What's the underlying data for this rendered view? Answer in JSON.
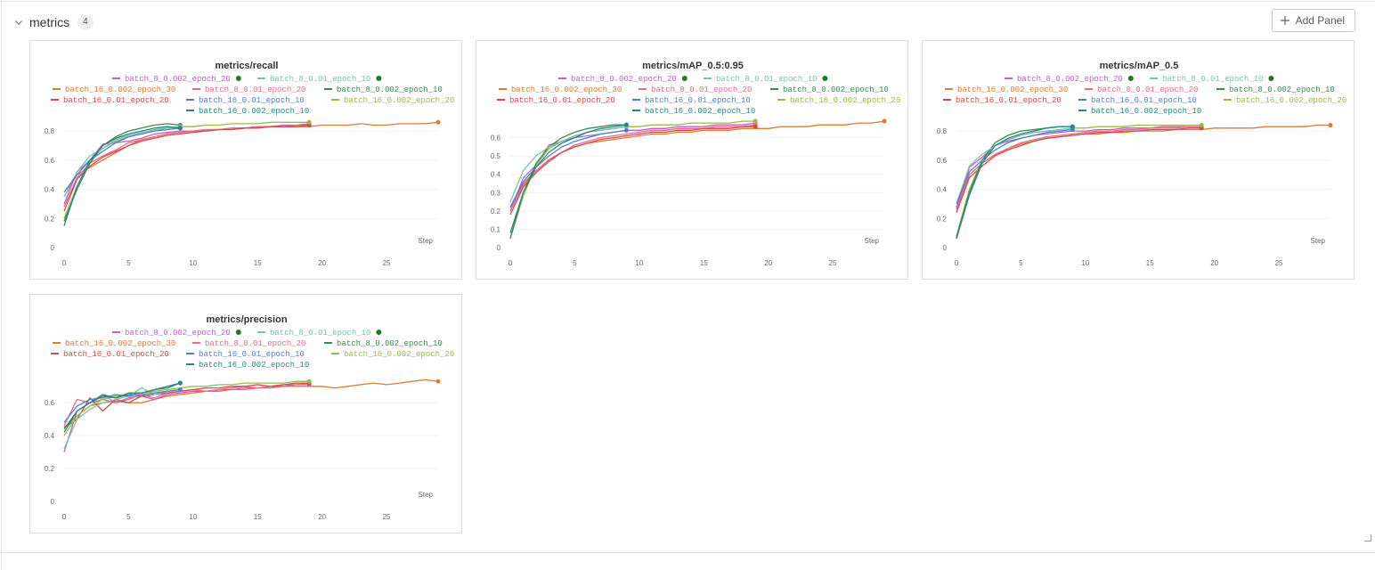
{
  "section": {
    "title": "metrics",
    "count": "4",
    "add_panel_label": "Add Panel"
  },
  "colors": {
    "b8_002_e20": "#c45fc5",
    "b8_01_e10": "#74c4b0",
    "b16_002_e30": "#e07a35",
    "b8_01_e20": "#e86b8c",
    "b8_002_e10": "#3a8a4e",
    "b16_01_e20": "#d94848",
    "b16_01_e10": "#4b7fd6",
    "b16_002_e20": "#96bc46",
    "b16_002_e10": "#2b8585",
    "dot": "#1d7a1d"
  },
  "legend": {
    "row1": [
      {
        "label": "batch_8_0.002_epoch_20",
        "color": "#c45fc5",
        "dot": true
      },
      {
        "label": "batch_8_0.01_epoch_10",
        "color": "#74c4b0",
        "dot": true
      }
    ],
    "row2": [
      {
        "label": "batch_16_0.002_epoch_30",
        "color": "#e07a35"
      },
      {
        "label": "batch_8_0.01_epoch_20",
        "color": "#e86b8c"
      },
      {
        "label": "batch_8_0.002_epoch_10",
        "color": "#3a8a4e"
      }
    ],
    "row3": [
      {
        "label": "batch_16_0.01_epoch_20",
        "color": "#d94848"
      },
      {
        "label": "batch_16_0.01_epoch_10",
        "color": "#4b7fd6"
      },
      {
        "label": "batch_16_0.002_epoch_20",
        "color": "#96bc46"
      }
    ],
    "row4": [
      {
        "label": "batch_16_0.002_epoch_10",
        "color": "#2b8585"
      }
    ]
  },
  "chart_data": [
    {
      "type": "line",
      "title": "metrics/recall",
      "xlabel": "Step",
      "xticks": [
        "0",
        "5",
        "10",
        "15",
        "20",
        "25"
      ],
      "yticks": [
        {
          "v": 0,
          "label": "0"
        },
        {
          "v": 0.2,
          "label": "0.2"
        },
        {
          "v": 0.4,
          "label": "0.4"
        },
        {
          "v": 0.6,
          "label": "0.6"
        },
        {
          "v": 0.8,
          "label": "0.8"
        }
      ],
      "xlim": [
        0,
        29
      ],
      "ylim": [
        0,
        0.88
      ],
      "series": [
        {
          "name": "batch_16_0.002_epoch_30",
          "color": "#e07a35",
          "y": [
            0.35,
            0.5,
            0.55,
            0.6,
            0.65,
            0.7,
            0.74,
            0.76,
            0.78,
            0.79,
            0.8,
            0.8,
            0.81,
            0.81,
            0.82,
            0.82,
            0.83,
            0.83,
            0.83,
            0.83,
            0.84,
            0.84,
            0.84,
            0.85,
            0.84,
            0.84,
            0.85,
            0.85,
            0.85,
            0.86
          ]
        },
        {
          "name": "batch_8_0.002_epoch_20",
          "color": "#c45fc5",
          "y": [
            0.3,
            0.52,
            0.6,
            0.71,
            0.72,
            0.73,
            0.75,
            0.78,
            0.79,
            0.8,
            0.8,
            0.81,
            0.81,
            0.82,
            0.82,
            0.83,
            0.83,
            0.84,
            0.84,
            0.85
          ]
        },
        {
          "name": "batch_8_0.01_epoch_20",
          "color": "#e86b8c",
          "y": [
            0.28,
            0.48,
            0.58,
            0.63,
            0.67,
            0.72,
            0.74,
            0.76,
            0.78,
            0.79,
            0.8,
            0.81,
            0.81,
            0.82,
            0.82,
            0.83,
            0.83,
            0.83,
            0.84,
            0.84
          ]
        },
        {
          "name": "batch_16_0.01_epoch_20",
          "color": "#d94848",
          "y": [
            0.25,
            0.47,
            0.56,
            0.62,
            0.66,
            0.7,
            0.73,
            0.75,
            0.77,
            0.78,
            0.79,
            0.8,
            0.81,
            0.81,
            0.82,
            0.82,
            0.83,
            0.83,
            0.83,
            0.84
          ]
        },
        {
          "name": "batch_16_0.002_epoch_20",
          "color": "#96bc46",
          "y": [
            0.2,
            0.42,
            0.6,
            0.68,
            0.73,
            0.76,
            0.78,
            0.8,
            0.82,
            0.83,
            0.83,
            0.84,
            0.84,
            0.85,
            0.85,
            0.85,
            0.86,
            0.86,
            0.86,
            0.86
          ]
        },
        {
          "name": "batch_8_0.002_epoch_10",
          "color": "#3a8a4e",
          "y": [
            0.18,
            0.4,
            0.58,
            0.7,
            0.76,
            0.8,
            0.82,
            0.84,
            0.85,
            0.84
          ]
        },
        {
          "name": "batch_8_0.01_epoch_10",
          "color": "#74c4b0",
          "y": [
            0.35,
            0.52,
            0.63,
            0.68,
            0.74,
            0.77,
            0.79,
            0.81,
            0.82,
            0.83
          ]
        },
        {
          "name": "batch_16_0.01_epoch_10",
          "color": "#4b7fd6",
          "y": [
            0.38,
            0.5,
            0.6,
            0.66,
            0.72,
            0.76,
            0.78,
            0.8,
            0.81,
            0.82
          ]
        },
        {
          "name": "batch_16_0.002_epoch_10",
          "color": "#2b8585",
          "y": [
            0.15,
            0.42,
            0.6,
            0.7,
            0.75,
            0.78,
            0.8,
            0.82,
            0.83,
            0.82
          ]
        }
      ]
    },
    {
      "type": "line",
      "title": "metrics/mAP_0.5:0.95",
      "xlabel": "Step",
      "xticks": [
        "0",
        "5",
        "10",
        "15",
        "20",
        "25"
      ],
      "yticks": [
        {
          "v": 0,
          "label": "0"
        },
        {
          "v": 0.1,
          "label": "0.1"
        },
        {
          "v": 0.2,
          "label": "0.2"
        },
        {
          "v": 0.3,
          "label": "0.3"
        },
        {
          "v": 0.4,
          "label": "0.4"
        },
        {
          "v": 0.5,
          "label": "0.5"
        },
        {
          "v": 0.6,
          "label": "0.6"
        }
      ],
      "xlim": [
        0,
        29
      ],
      "ylim": [
        0,
        0.7
      ],
      "series": [
        {
          "name": "batch_16_0.002_epoch_30",
          "color": "#e07a35",
          "y": [
            0.22,
            0.35,
            0.42,
            0.48,
            0.52,
            0.55,
            0.57,
            0.58,
            0.59,
            0.6,
            0.61,
            0.62,
            0.62,
            0.63,
            0.63,
            0.64,
            0.64,
            0.64,
            0.65,
            0.65,
            0.65,
            0.66,
            0.66,
            0.66,
            0.67,
            0.67,
            0.67,
            0.68,
            0.68,
            0.69
          ]
        },
        {
          "name": "batch_8_0.002_epoch_20",
          "color": "#c45fc5",
          "y": [
            0.2,
            0.38,
            0.45,
            0.56,
            0.58,
            0.6,
            0.61,
            0.62,
            0.63,
            0.64,
            0.64,
            0.65,
            0.65,
            0.66,
            0.66,
            0.66,
            0.67,
            0.67,
            0.67,
            0.68
          ]
        },
        {
          "name": "batch_8_0.01_epoch_20",
          "color": "#e86b8c",
          "y": [
            0.2,
            0.34,
            0.42,
            0.48,
            0.52,
            0.56,
            0.58,
            0.6,
            0.61,
            0.62,
            0.63,
            0.64,
            0.64,
            0.65,
            0.65,
            0.65,
            0.66,
            0.66,
            0.66,
            0.67
          ]
        },
        {
          "name": "batch_16_0.01_epoch_20",
          "color": "#d94848",
          "y": [
            0.18,
            0.33,
            0.41,
            0.47,
            0.52,
            0.55,
            0.57,
            0.59,
            0.6,
            0.61,
            0.62,
            0.63,
            0.63,
            0.64,
            0.64,
            0.65,
            0.65,
            0.65,
            0.66,
            0.66
          ]
        },
        {
          "name": "batch_16_0.002_epoch_20",
          "color": "#96bc46",
          "y": [
            0.05,
            0.28,
            0.45,
            0.54,
            0.58,
            0.61,
            0.63,
            0.64,
            0.65,
            0.66,
            0.66,
            0.67,
            0.67,
            0.67,
            0.68,
            0.68,
            0.68,
            0.68,
            0.69,
            0.69
          ]
        },
        {
          "name": "batch_8_0.002_epoch_10",
          "color": "#3a8a4e",
          "y": [
            0.05,
            0.3,
            0.46,
            0.55,
            0.6,
            0.63,
            0.65,
            0.66,
            0.67,
            0.67
          ]
        },
        {
          "name": "batch_8_0.01_epoch_10",
          "color": "#74c4b0",
          "y": [
            0.25,
            0.42,
            0.5,
            0.55,
            0.58,
            0.61,
            0.63,
            0.64,
            0.65,
            0.66
          ]
        },
        {
          "name": "batch_16_0.01_epoch_10",
          "color": "#4b7fd6",
          "y": [
            0.22,
            0.36,
            0.44,
            0.5,
            0.55,
            0.58,
            0.6,
            0.62,
            0.63,
            0.64
          ]
        },
        {
          "name": "batch_16_0.002_epoch_10",
          "color": "#2b8585",
          "y": [
            0.08,
            0.3,
            0.44,
            0.52,
            0.57,
            0.6,
            0.63,
            0.65,
            0.66,
            0.67
          ]
        }
      ]
    },
    {
      "type": "line",
      "title": "metrics/mAP_0.5",
      "xlabel": "Step",
      "xticks": [
        "0",
        "5",
        "10",
        "15",
        "20",
        "25"
      ],
      "yticks": [
        {
          "v": 0,
          "label": "0"
        },
        {
          "v": 0.2,
          "label": "0.2"
        },
        {
          "v": 0.4,
          "label": "0.4"
        },
        {
          "v": 0.6,
          "label": "0.6"
        },
        {
          "v": 0.8,
          "label": "0.8"
        }
      ],
      "xlim": [
        0,
        29
      ],
      "ylim": [
        0,
        0.88
      ],
      "series": [
        {
          "name": "batch_16_0.002_epoch_30",
          "color": "#e07a35",
          "y": [
            0.28,
            0.5,
            0.58,
            0.64,
            0.68,
            0.71,
            0.73,
            0.75,
            0.76,
            0.77,
            0.78,
            0.78,
            0.79,
            0.79,
            0.8,
            0.8,
            0.8,
            0.81,
            0.81,
            0.81,
            0.82,
            0.82,
            0.82,
            0.82,
            0.83,
            0.83,
            0.83,
            0.83,
            0.84,
            0.84
          ]
        },
        {
          "name": "batch_8_0.002_epoch_20",
          "color": "#c45fc5",
          "y": [
            0.27,
            0.55,
            0.62,
            0.7,
            0.73,
            0.75,
            0.77,
            0.78,
            0.79,
            0.8,
            0.8,
            0.81,
            0.81,
            0.82,
            0.82,
            0.82,
            0.83,
            0.83,
            0.83,
            0.83
          ]
        },
        {
          "name": "batch_8_0.01_epoch_20",
          "color": "#e86b8c",
          "y": [
            0.26,
            0.5,
            0.58,
            0.64,
            0.68,
            0.72,
            0.74,
            0.76,
            0.77,
            0.78,
            0.79,
            0.8,
            0.8,
            0.81,
            0.81,
            0.82,
            0.82,
            0.82,
            0.83,
            0.83
          ]
        },
        {
          "name": "batch_16_0.01_epoch_20",
          "color": "#d94848",
          "y": [
            0.24,
            0.48,
            0.56,
            0.63,
            0.67,
            0.7,
            0.73,
            0.75,
            0.76,
            0.77,
            0.78,
            0.79,
            0.79,
            0.8,
            0.8,
            0.81,
            0.81,
            0.81,
            0.82,
            0.82
          ]
        },
        {
          "name": "batch_16_0.002_epoch_20",
          "color": "#96bc46",
          "y": [
            0.08,
            0.4,
            0.6,
            0.7,
            0.74,
            0.77,
            0.79,
            0.8,
            0.81,
            0.82,
            0.82,
            0.83,
            0.83,
            0.83,
            0.84,
            0.84,
            0.84,
            0.84,
            0.84,
            0.84
          ]
        },
        {
          "name": "batch_8_0.002_epoch_10",
          "color": "#3a8a4e",
          "y": [
            0.07,
            0.38,
            0.6,
            0.72,
            0.77,
            0.8,
            0.81,
            0.82,
            0.83,
            0.83
          ]
        },
        {
          "name": "batch_8_0.01_epoch_10",
          "color": "#74c4b0",
          "y": [
            0.3,
            0.56,
            0.64,
            0.7,
            0.74,
            0.77,
            0.79,
            0.8,
            0.81,
            0.82
          ]
        },
        {
          "name": "batch_16_0.01_epoch_10",
          "color": "#4b7fd6",
          "y": [
            0.3,
            0.52,
            0.6,
            0.67,
            0.72,
            0.75,
            0.77,
            0.79,
            0.8,
            0.81
          ]
        },
        {
          "name": "batch_16_0.002_epoch_10",
          "color": "#2b8585",
          "y": [
            0.06,
            0.36,
            0.58,
            0.7,
            0.75,
            0.78,
            0.8,
            0.82,
            0.83,
            0.83
          ]
        }
      ]
    },
    {
      "type": "line",
      "title": "metrics/precision",
      "xlabel": "Step",
      "xticks": [
        "0",
        "5",
        "10",
        "15",
        "20",
        "25"
      ],
      "yticks": [
        {
          "v": 0,
          "label": "0"
        },
        {
          "v": 0.2,
          "label": "0.2"
        },
        {
          "v": 0.4,
          "label": "0.4"
        },
        {
          "v": 0.6,
          "label": "0.6"
        }
      ],
      "xlim": [
        0,
        29
      ],
      "ylim": [
        0,
        0.78
      ],
      "series": [
        {
          "name": "batch_16_0.002_epoch_30",
          "color": "#e07a35",
          "y": [
            0.45,
            0.52,
            0.58,
            0.6,
            0.61,
            0.6,
            0.6,
            0.62,
            0.64,
            0.65,
            0.66,
            0.67,
            0.67,
            0.68,
            0.68,
            0.69,
            0.69,
            0.7,
            0.7,
            0.7,
            0.7,
            0.69,
            0.7,
            0.71,
            0.72,
            0.71,
            0.72,
            0.73,
            0.74,
            0.73
          ]
        },
        {
          "name": "batch_8_0.002_epoch_20",
          "color": "#c45fc5",
          "y": [
            0.3,
            0.55,
            0.6,
            0.62,
            0.6,
            0.63,
            0.64,
            0.62,
            0.65,
            0.66,
            0.67,
            0.67,
            0.68,
            0.68,
            0.69,
            0.69,
            0.7,
            0.7,
            0.71,
            0.71
          ]
        },
        {
          "name": "batch_8_0.01_epoch_20",
          "color": "#e86b8c",
          "y": [
            0.46,
            0.62,
            0.6,
            0.65,
            0.6,
            0.62,
            0.65,
            0.63,
            0.66,
            0.67,
            0.68,
            0.67,
            0.68,
            0.69,
            0.7,
            0.69,
            0.7,
            0.71,
            0.71,
            0.72
          ]
        },
        {
          "name": "batch_16_0.01_epoch_20",
          "color": "#d94848",
          "y": [
            0.45,
            0.5,
            0.63,
            0.55,
            0.62,
            0.6,
            0.64,
            0.65,
            0.66,
            0.67,
            0.68,
            0.69,
            0.69,
            0.7,
            0.7,
            0.71,
            0.7,
            0.71,
            0.72,
            0.72
          ]
        },
        {
          "name": "batch_16_0.002_epoch_20",
          "color": "#96bc46",
          "y": [
            0.4,
            0.52,
            0.58,
            0.62,
            0.64,
            0.65,
            0.66,
            0.67,
            0.68,
            0.69,
            0.7,
            0.7,
            0.71,
            0.71,
            0.72,
            0.72,
            0.72,
            0.72,
            0.73,
            0.73
          ]
        },
        {
          "name": "batch_8_0.002_epoch_10",
          "color": "#3a8a4e",
          "y": [
            0.42,
            0.55,
            0.6,
            0.65,
            0.63,
            0.66,
            0.66,
            0.68,
            0.69,
            0.72
          ]
        },
        {
          "name": "batch_8_0.01_epoch_10",
          "color": "#74c4b0",
          "y": [
            0.32,
            0.5,
            0.56,
            0.6,
            0.62,
            0.64,
            0.69,
            0.65,
            0.67,
            0.68
          ]
        },
        {
          "name": "batch_16_0.01_epoch_10",
          "color": "#4b7fd6",
          "y": [
            0.48,
            0.58,
            0.62,
            0.63,
            0.65,
            0.64,
            0.65,
            0.66,
            0.67,
            0.68
          ]
        },
        {
          "name": "batch_16_0.002_epoch_10",
          "color": "#2b8585",
          "y": [
            0.44,
            0.55,
            0.6,
            0.64,
            0.63,
            0.65,
            0.66,
            0.68,
            0.7,
            0.72
          ]
        }
      ]
    }
  ]
}
